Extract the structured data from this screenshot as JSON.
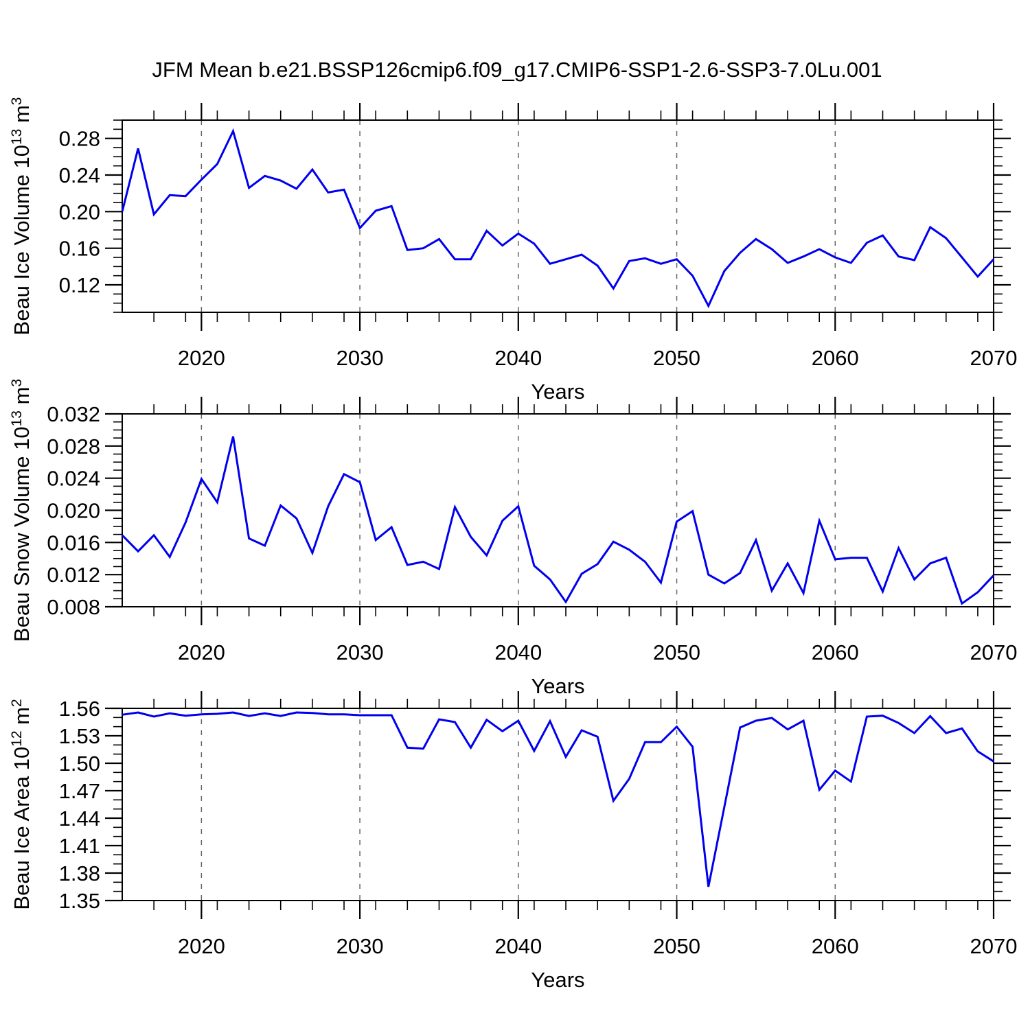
{
  "title": "JFM Mean b.e21.BSSP126cmip6.f09_g17.CMIP6-SSP1-2.6-SSP3-7.0Lu.001",
  "figure": {
    "background": "#ffffff",
    "series_color": "#0000ee",
    "grid_color": "#666666",
    "axis_color": "#000000"
  },
  "x_axis": {
    "label": "Years",
    "tick_labels": [
      "2020",
      "2030",
      "2040",
      "2050",
      "2060",
      "2070"
    ],
    "tick_values": [
      2020,
      2030,
      2040,
      2050,
      2060,
      2070
    ],
    "minor_step": 2,
    "range": [
      2015,
      2070
    ],
    "grid_lines": [
      2020,
      2030,
      2040,
      2050,
      2060
    ]
  },
  "chart_data": [
    {
      "type": "line",
      "id": "beau-ice-volume",
      "title": "JFM Mean b.e21.BSSP126cmip6.f09_g17.CMIP6-SSP1-2.6-SSP3-7.0Lu.001",
      "xlabel": "Years",
      "ylabel": "Beau Ice Volume 10^13 m^3",
      "ylabel_parts": [
        {
          "t": "Beau Ice Volume 10"
        },
        {
          "t": "13",
          "sup": true
        },
        {
          "t": " m",
          "sup": false
        },
        {
          "t": "3",
          "sup": true
        }
      ],
      "xlim": [
        2015,
        2070
      ],
      "ylim": [
        0.09,
        0.3
      ],
      "yticks": [
        0.12,
        0.16,
        0.2,
        0.24,
        0.28
      ],
      "ytick_labels": [
        "0.12",
        "0.16",
        "0.20",
        "0.24",
        "0.28"
      ],
      "y_minor_step": 0.01,
      "grid": true,
      "legend": "none",
      "x": [
        2015,
        2016,
        2017,
        2018,
        2019,
        2020,
        2021,
        2022,
        2023,
        2024,
        2025,
        2026,
        2027,
        2028,
        2029,
        2030,
        2031,
        2032,
        2033,
        2034,
        2035,
        2036,
        2037,
        2038,
        2039,
        2040,
        2041,
        2042,
        2043,
        2044,
        2045,
        2046,
        2047,
        2048,
        2049,
        2050,
        2051,
        2052,
        2053,
        2054,
        2055,
        2056,
        2057,
        2058,
        2059,
        2060,
        2061,
        2062,
        2063,
        2064,
        2065,
        2066,
        2067,
        2068,
        2069,
        2070
      ],
      "values": [
        0.2,
        0.269,
        0.197,
        0.218,
        0.217,
        0.235,
        0.252,
        0.288,
        0.226,
        0.239,
        0.234,
        0.225,
        0.246,
        0.221,
        0.224,
        0.182,
        0.201,
        0.206,
        0.158,
        0.16,
        0.17,
        0.148,
        0.148,
        0.179,
        0.163,
        0.176,
        0.165,
        0.143,
        0.148,
        0.153,
        0.141,
        0.116,
        0.146,
        0.149,
        0.143,
        0.148,
        0.13,
        0.097,
        0.135,
        0.155,
        0.17,
        0.159,
        0.144,
        0.151,
        0.159,
        0.15,
        0.144,
        0.166,
        0.174,
        0.151,
        0.147,
        0.183,
        0.171,
        0.15,
        0.129,
        0.148
      ]
    },
    {
      "type": "line",
      "id": "beau-snow-volume",
      "title": "",
      "xlabel": "Years",
      "ylabel": "Beau Snow Volume 10^13 m^3",
      "ylabel_parts": [
        {
          "t": "Beau Snow Volume 10"
        },
        {
          "t": "13",
          "sup": true
        },
        {
          "t": " m",
          "sup": false
        },
        {
          "t": "3",
          "sup": true
        }
      ],
      "xlim": [
        2015,
        2070
      ],
      "ylim": [
        0.008,
        0.032
      ],
      "yticks": [
        0.008,
        0.012,
        0.016,
        0.02,
        0.024,
        0.028,
        0.032
      ],
      "ytick_labels": [
        "0.008",
        "0.012",
        "0.016",
        "0.020",
        "0.024",
        "0.028",
        "0.032"
      ],
      "y_minor_step": 0.001,
      "grid": true,
      "legend": "none",
      "x": [
        2015,
        2016,
        2017,
        2018,
        2019,
        2020,
        2021,
        2022,
        2023,
        2024,
        2025,
        2026,
        2027,
        2028,
        2029,
        2030,
        2031,
        2032,
        2033,
        2034,
        2035,
        2036,
        2037,
        2038,
        2039,
        2040,
        2041,
        2042,
        2043,
        2044,
        2045,
        2046,
        2047,
        2048,
        2049,
        2050,
        2051,
        2052,
        2053,
        2054,
        2055,
        2056,
        2057,
        2058,
        2059,
        2060,
        2061,
        2062,
        2063,
        2064,
        2065,
        2066,
        2067,
        2068,
        2069,
        2070
      ],
      "values": [
        0.0169,
        0.0149,
        0.0169,
        0.0142,
        0.0185,
        0.0239,
        0.021,
        0.0292,
        0.0165,
        0.0156,
        0.0206,
        0.019,
        0.0147,
        0.0205,
        0.0245,
        0.0235,
        0.0163,
        0.0179,
        0.0132,
        0.0136,
        0.0127,
        0.0204,
        0.0167,
        0.0144,
        0.0187,
        0.0205,
        0.0131,
        0.0114,
        0.0086,
        0.0121,
        0.0133,
        0.0161,
        0.0151,
        0.0136,
        0.011,
        0.0186,
        0.0199,
        0.012,
        0.0109,
        0.0122,
        0.0163,
        0.01,
        0.0134,
        0.0097,
        0.0187,
        0.0139,
        0.0141,
        0.0141,
        0.0099,
        0.0153,
        0.0114,
        0.0134,
        0.0141,
        0.0084,
        0.0098,
        0.0119
      ]
    },
    {
      "type": "line",
      "id": "beau-ice-area",
      "title": "",
      "xlabel": "Years",
      "ylabel": "Beau Ice Area 10^12 m^2",
      "ylabel_parts": [
        {
          "t": "Beau Ice Area 10"
        },
        {
          "t": "12",
          "sup": true
        },
        {
          "t": " m",
          "sup": false
        },
        {
          "t": "2",
          "sup": true
        }
      ],
      "xlim": [
        2015,
        2070
      ],
      "ylim": [
        1.35,
        1.56
      ],
      "yticks": [
        1.35,
        1.38,
        1.41,
        1.44,
        1.47,
        1.5,
        1.53,
        1.56
      ],
      "ytick_labels": [
        "1.35",
        "1.38",
        "1.41",
        "1.44",
        "1.47",
        "1.50",
        "1.53",
        "1.56"
      ],
      "y_minor_step": 0.01,
      "grid": true,
      "legend": "none",
      "x": [
        2015,
        2016,
        2017,
        2018,
        2019,
        2020,
        2021,
        2022,
        2023,
        2024,
        2025,
        2026,
        2027,
        2028,
        2029,
        2030,
        2031,
        2032,
        2033,
        2034,
        2035,
        2036,
        2037,
        2038,
        2039,
        2040,
        2041,
        2042,
        2043,
        2044,
        2045,
        2046,
        2047,
        2048,
        2049,
        2050,
        2051,
        2052,
        2053,
        2054,
        2055,
        2056,
        2057,
        2058,
        2059,
        2060,
        2061,
        2062,
        2063,
        2064,
        2065,
        2066,
        2067,
        2068,
        2069,
        2070
      ],
      "values": [
        1.553,
        1.5555,
        1.551,
        1.5545,
        1.552,
        1.5535,
        1.554,
        1.5555,
        1.5517,
        1.5545,
        1.5517,
        1.5555,
        1.555,
        1.5535,
        1.5535,
        1.5525,
        1.5525,
        1.5525,
        1.517,
        1.516,
        1.548,
        1.545,
        1.517,
        1.5475,
        1.535,
        1.5465,
        1.5135,
        1.546,
        1.507,
        1.536,
        1.529,
        1.459,
        1.483,
        1.523,
        1.523,
        1.54,
        1.518,
        1.365,
        1.452,
        1.539,
        1.5465,
        1.5495,
        1.537,
        1.5465,
        1.471,
        1.492,
        1.48,
        1.551,
        1.552,
        1.544,
        1.533,
        1.5515,
        1.533,
        1.538,
        1.513,
        1.502
      ]
    }
  ]
}
